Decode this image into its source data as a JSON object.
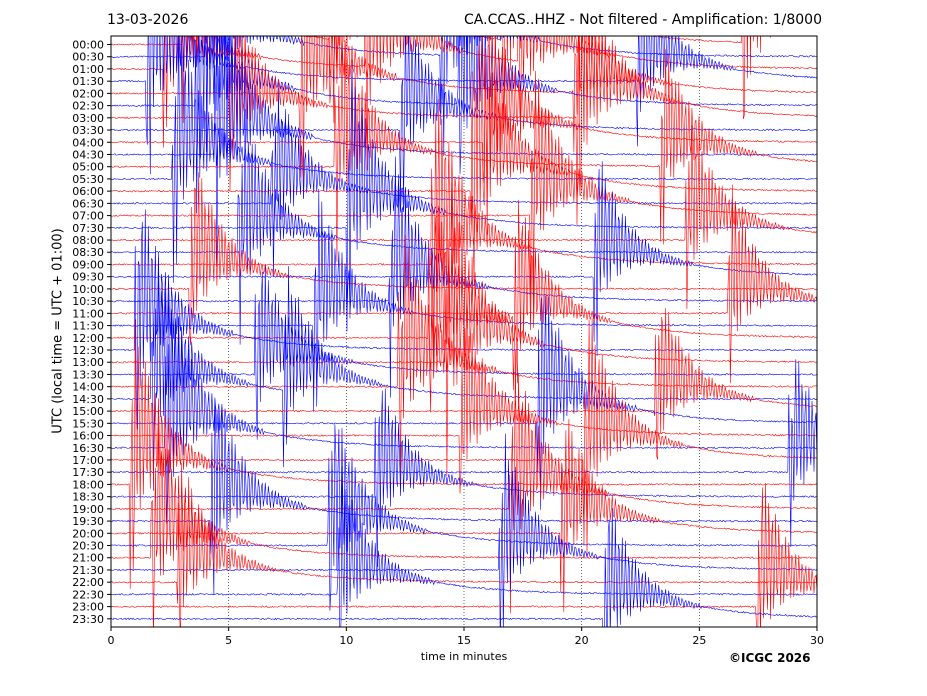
{
  "header": {
    "date": "13-03-2026",
    "title": "CA.CCAS..HHZ - Not filtered - Amplification: 1/8000"
  },
  "footer": {
    "copyright": "©ICGC 2026"
  },
  "colors": {
    "trace_a": "#0000ff",
    "trace_b": "#ff0000",
    "axis": "#000000"
  },
  "chart_data": {
    "type": "line",
    "title": "CA.CCAS..HHZ - Not filtered - Amplification: 1/8000",
    "xlabel": "time in minutes",
    "ylabel": "UTC (local time = UTC + 01:00)",
    "xlim": [
      0,
      30
    ],
    "xticks": [
      "0",
      "5",
      "10",
      "15",
      "20",
      "25",
      "30"
    ],
    "yticks": [
      "00:00",
      "00:30",
      "01:00",
      "01:30",
      "02:00",
      "02:30",
      "03:00",
      "03:30",
      "04:00",
      "04:30",
      "05:00",
      "05:30",
      "06:00",
      "06:30",
      "07:00",
      "07:30",
      "08:00",
      "08:30",
      "09:00",
      "09:30",
      "10:00",
      "10:30",
      "11:00",
      "11:30",
      "12:00",
      "12:30",
      "13:00",
      "13:30",
      "14:00",
      "14:30",
      "15:00",
      "15:30",
      "16:00",
      "16:30",
      "17:00",
      "17:30",
      "18:00",
      "18:30",
      "19:00",
      "19:30",
      "20:00",
      "20:30",
      "21:00",
      "21:30",
      "22:00",
      "22:30",
      "23:00",
      "23:30"
    ],
    "grid": "dotted vertical at x ticks",
    "series": [
      {
        "color": "#ff0000",
        "rows": "even (00:00, 01:00, ...)"
      },
      {
        "color": "#0000ff",
        "rows": "odd (00:30, 01:30, ...)"
      }
    ]
  }
}
